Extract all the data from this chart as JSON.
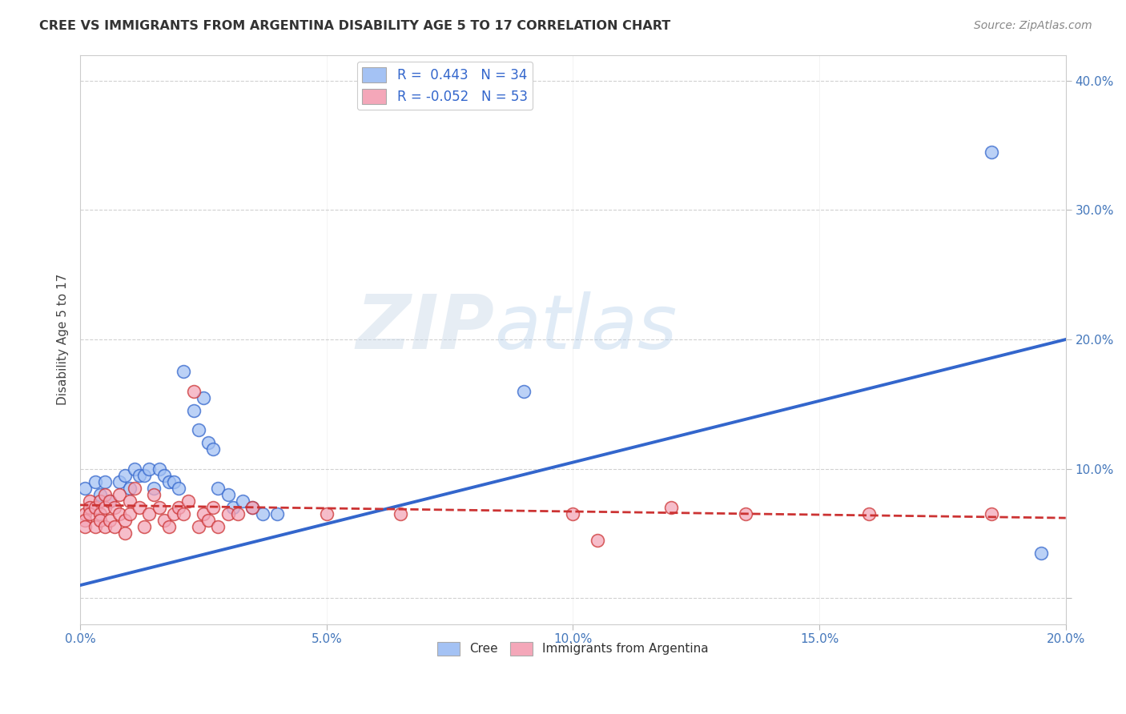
{
  "title": "CREE VS IMMIGRANTS FROM ARGENTINA DISABILITY AGE 5 TO 17 CORRELATION CHART",
  "source": "Source: ZipAtlas.com",
  "ylabel": "Disability Age 5 to 17",
  "xlabel": "",
  "xlim": [
    0.0,
    0.2
  ],
  "ylim": [
    -0.02,
    0.42
  ],
  "xticks": [
    0.0,
    0.05,
    0.1,
    0.15,
    0.2
  ],
  "yticks": [
    0.0,
    0.1,
    0.2,
    0.3,
    0.4
  ],
  "xtick_labels": [
    "0.0%",
    "5.0%",
    "10.0%",
    "15.0%",
    "20.0%"
  ],
  "ytick_labels": [
    "",
    "10.0%",
    "20.0%",
    "30.0%",
    "40.0%"
  ],
  "cree_color": "#a4c2f4",
  "argentina_color": "#f4a7b9",
  "cree_line_color": "#3366cc",
  "argentina_line_color": "#cc3333",
  "legend_R_cree": "R =  0.443",
  "legend_N_cree": "N = 34",
  "legend_R_arg": "R = -0.052",
  "legend_N_arg": "N = 53",
  "watermark_zip": "ZIP",
  "watermark_atlas": "atlas",
  "cree_points": [
    [
      0.001,
      0.085
    ],
    [
      0.003,
      0.09
    ],
    [
      0.004,
      0.08
    ],
    [
      0.005,
      0.09
    ],
    [
      0.006,
      0.075
    ],
    [
      0.008,
      0.09
    ],
    [
      0.009,
      0.095
    ],
    [
      0.01,
      0.085
    ],
    [
      0.011,
      0.1
    ],
    [
      0.012,
      0.095
    ],
    [
      0.013,
      0.095
    ],
    [
      0.014,
      0.1
    ],
    [
      0.015,
      0.085
    ],
    [
      0.016,
      0.1
    ],
    [
      0.017,
      0.095
    ],
    [
      0.018,
      0.09
    ],
    [
      0.019,
      0.09
    ],
    [
      0.02,
      0.085
    ],
    [
      0.021,
      0.175
    ],
    [
      0.023,
      0.145
    ],
    [
      0.024,
      0.13
    ],
    [
      0.025,
      0.155
    ],
    [
      0.026,
      0.12
    ],
    [
      0.027,
      0.115
    ],
    [
      0.028,
      0.085
    ],
    [
      0.03,
      0.08
    ],
    [
      0.031,
      0.07
    ],
    [
      0.033,
      0.075
    ],
    [
      0.035,
      0.07
    ],
    [
      0.037,
      0.065
    ],
    [
      0.04,
      0.065
    ],
    [
      0.09,
      0.16
    ],
    [
      0.185,
      0.345
    ],
    [
      0.195,
      0.035
    ]
  ],
  "argentina_points": [
    [
      0.001,
      0.065
    ],
    [
      0.001,
      0.06
    ],
    [
      0.001,
      0.055
    ],
    [
      0.002,
      0.075
    ],
    [
      0.002,
      0.07
    ],
    [
      0.002,
      0.065
    ],
    [
      0.003,
      0.07
    ],
    [
      0.003,
      0.055
    ],
    [
      0.004,
      0.075
    ],
    [
      0.004,
      0.065
    ],
    [
      0.004,
      0.06
    ],
    [
      0.005,
      0.08
    ],
    [
      0.005,
      0.07
    ],
    [
      0.005,
      0.055
    ],
    [
      0.006,
      0.075
    ],
    [
      0.006,
      0.06
    ],
    [
      0.007,
      0.07
    ],
    [
      0.007,
      0.055
    ],
    [
      0.008,
      0.08
    ],
    [
      0.008,
      0.065
    ],
    [
      0.009,
      0.06
    ],
    [
      0.009,
      0.05
    ],
    [
      0.01,
      0.075
    ],
    [
      0.01,
      0.065
    ],
    [
      0.011,
      0.085
    ],
    [
      0.012,
      0.07
    ],
    [
      0.013,
      0.055
    ],
    [
      0.014,
      0.065
    ],
    [
      0.015,
      0.08
    ],
    [
      0.016,
      0.07
    ],
    [
      0.017,
      0.06
    ],
    [
      0.018,
      0.055
    ],
    [
      0.019,
      0.065
    ],
    [
      0.02,
      0.07
    ],
    [
      0.021,
      0.065
    ],
    [
      0.022,
      0.075
    ],
    [
      0.023,
      0.16
    ],
    [
      0.024,
      0.055
    ],
    [
      0.025,
      0.065
    ],
    [
      0.026,
      0.06
    ],
    [
      0.027,
      0.07
    ],
    [
      0.028,
      0.055
    ],
    [
      0.03,
      0.065
    ],
    [
      0.032,
      0.065
    ],
    [
      0.035,
      0.07
    ],
    [
      0.05,
      0.065
    ],
    [
      0.065,
      0.065
    ],
    [
      0.1,
      0.065
    ],
    [
      0.105,
      0.045
    ],
    [
      0.12,
      0.07
    ],
    [
      0.135,
      0.065
    ],
    [
      0.16,
      0.065
    ],
    [
      0.185,
      0.065
    ]
  ],
  "cree_trend_x": [
    0.0,
    0.2
  ],
  "cree_trend_y": [
    0.0,
    0.2
  ],
  "arg_trend_x": [
    0.0,
    0.185
  ],
  "arg_trend_y": [
    0.072,
    0.065
  ],
  "background_color": "#ffffff",
  "plot_bg_color": "#ffffff",
  "grid_color": "#cccccc"
}
